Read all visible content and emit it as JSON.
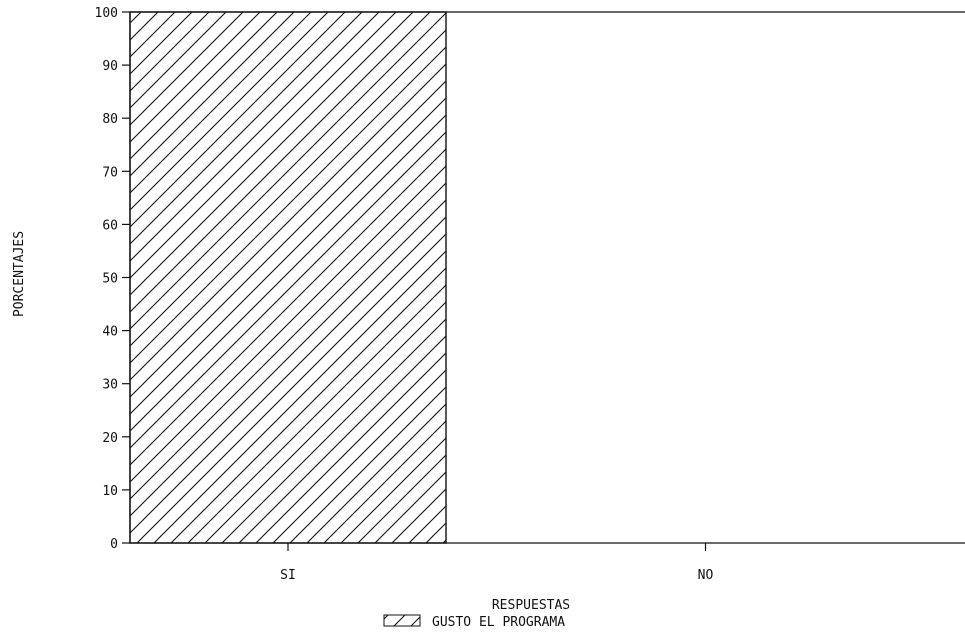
{
  "chart_data": {
    "type": "bar",
    "categories": [
      "SI",
      "NO"
    ],
    "series": [
      {
        "name": "GUSTO EL PROGRAMA",
        "values": [
          100,
          0
        ]
      }
    ],
    "xlabel": "RESPUESTAS",
    "ylabel": "PORCENTAJES",
    "ylim": [
      0,
      100
    ],
    "yticks": [
      0,
      10,
      20,
      30,
      40,
      50,
      60,
      70,
      80,
      90,
      100
    ],
    "ytick_labels": [
      "0",
      "10",
      "20",
      "30",
      "40",
      "50",
      "60",
      "70",
      "80",
      "90",
      "100"
    ],
    "grid": false,
    "legend_position": "bottom-center",
    "bar_pattern": "diagonal-hatch",
    "colors": {
      "stroke": "#111111",
      "background": "#ffffff"
    }
  }
}
